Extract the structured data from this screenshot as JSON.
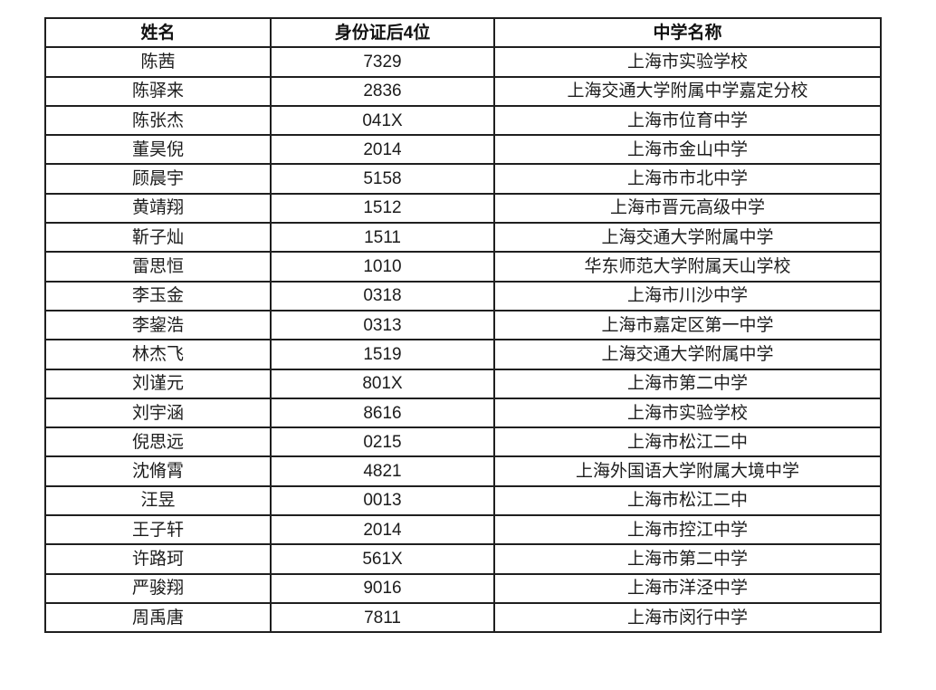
{
  "table": {
    "columns": [
      "姓名",
      "身份证后4位",
      "中学名称"
    ],
    "rows": [
      [
        "陈茜",
        "7329",
        "上海市实验学校"
      ],
      [
        "陈驿来",
        "2836",
        "上海交通大学附属中学嘉定分校"
      ],
      [
        "陈张杰",
        "041X",
        "上海市位育中学"
      ],
      [
        "董昊倪",
        "2014",
        "上海市金山中学"
      ],
      [
        "顾晨宇",
        "5158",
        "上海市市北中学"
      ],
      [
        "黄靖翔",
        "1512",
        "上海市晋元高级中学"
      ],
      [
        "靳子灿",
        "1511",
        "上海交通大学附属中学"
      ],
      [
        "雷思恒",
        "1010",
        "华东师范大学附属天山学校"
      ],
      [
        "李玉金",
        "0318",
        "上海市川沙中学"
      ],
      [
        "李鋆浩",
        "0313",
        "上海市嘉定区第一中学"
      ],
      [
        "林杰飞",
        "1519",
        "上海交通大学附属中学"
      ],
      [
        "刘谨元",
        "801X",
        "上海市第二中学"
      ],
      [
        "刘宇涵",
        "8616",
        "上海市实验学校"
      ],
      [
        "倪思远",
        "0215",
        "上海市松江二中"
      ],
      [
        "沈脩霄",
        "4821",
        "上海外国语大学附属大境中学"
      ],
      [
        "汪昱",
        "0013",
        "上海市松江二中"
      ],
      [
        "王子轩",
        "2014",
        "上海市控江中学"
      ],
      [
        "许路珂",
        "561X",
        "上海市第二中学"
      ],
      [
        "严骏翔",
        "9016",
        "上海市洋泾中学"
      ],
      [
        "周禹唐",
        "7811",
        "上海市闵行中学"
      ]
    ]
  },
  "colors": {
    "border": "#1f1f1f",
    "text": "#1c1c1c",
    "background": "#ffffff"
  }
}
